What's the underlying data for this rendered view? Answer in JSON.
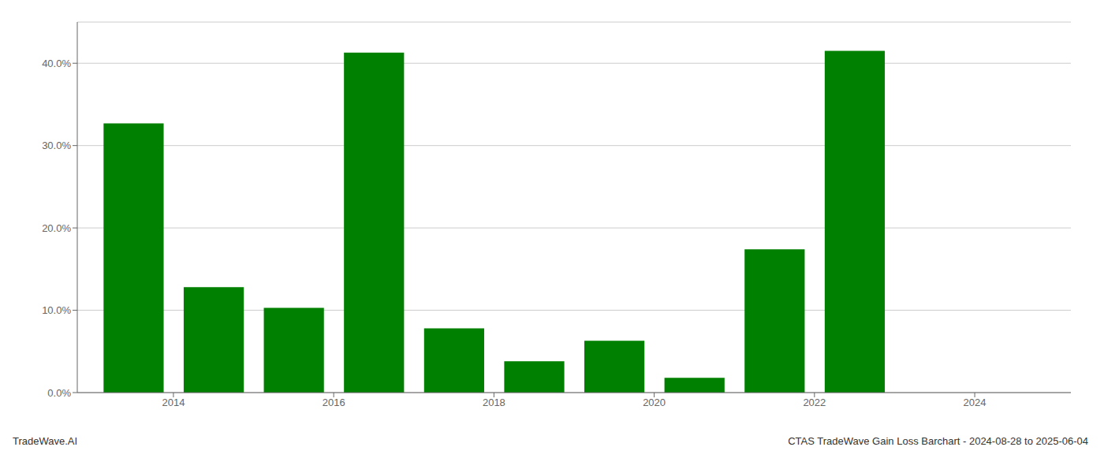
{
  "chart_data": {
    "type": "bar",
    "x": [
      2013.5,
      2014.5,
      2015.5,
      2016.5,
      2017.5,
      2018.5,
      2019.5,
      2020.5,
      2021.5,
      2022.5
    ],
    "values": [
      0.327,
      0.128,
      0.103,
      0.413,
      0.078,
      0.038,
      0.063,
      0.018,
      0.174,
      0.415
    ],
    "color": "#008000",
    "xlim": [
      2012.8,
      2025.2
    ],
    "xticks": [
      2014,
      2016,
      2018,
      2020,
      2022,
      2024
    ],
    "ylim": [
      0,
      0.45
    ],
    "yticks": [
      {
        "value": 0.0,
        "label": "0.0%"
      },
      {
        "value": 0.1,
        "label": "10.0%"
      },
      {
        "value": 0.2,
        "label": "20.0%"
      },
      {
        "value": 0.3,
        "label": "30.0%"
      },
      {
        "value": 0.4,
        "label": "40.0%"
      }
    ],
    "grid": true,
    "annotations": [
      "TradeWave.AI",
      "CTAS TradeWave Gain Loss Barchart - 2024-08-28 to 2025-06-04"
    ]
  }
}
